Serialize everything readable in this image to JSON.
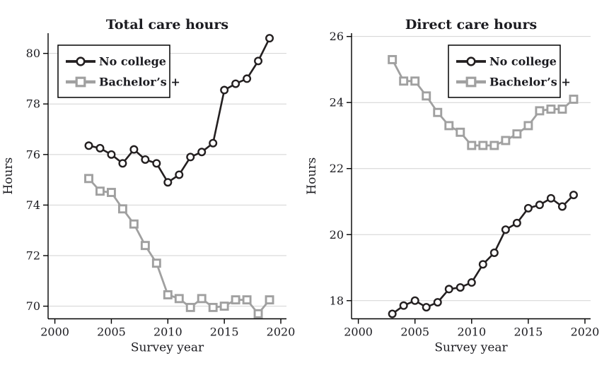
{
  "figure": {
    "background": "#ffffff",
    "colors": {
      "no_college": "#231f20",
      "bachelors": "#a0a0a0",
      "grid": "#d2d2d2",
      "axis": "#000000",
      "text": "#1b1b20",
      "legend_border": "#000000",
      "legend_fill": "#ffffff",
      "marker_fill": "#ffffff"
    }
  },
  "chart_data": [
    {
      "type": "line",
      "title": "Total care hours",
      "xlabel": "Survey year",
      "ylabel": "Hours",
      "x": [
        2003,
        2004,
        2005,
        2006,
        2007,
        2008,
        2009,
        2010,
        2011,
        2012,
        2013,
        2014,
        2015,
        2016,
        2017,
        2018,
        2019
      ],
      "series": [
        {
          "name": "No college",
          "marker": "circle",
          "color_key": "no_college",
          "values": [
            76.35,
            76.25,
            76.0,
            75.65,
            76.2,
            75.8,
            75.65,
            74.9,
            75.2,
            75.9,
            76.1,
            76.45,
            78.55,
            78.8,
            79.0,
            79.7,
            80.6
          ]
        },
        {
          "name": "Bachelor’s +",
          "marker": "square",
          "color_key": "bachelors",
          "values": [
            75.05,
            74.55,
            74.5,
            73.85,
            73.25,
            72.4,
            71.7,
            70.45,
            70.3,
            69.95,
            70.3,
            69.95,
            70.0,
            70.25,
            70.25,
            69.7,
            70.25
          ]
        }
      ],
      "xlim": [
        1999.4,
        2020.5
      ],
      "ylim": [
        69.5,
        80.8
      ],
      "xticks": [
        2000,
        2005,
        2010,
        2015,
        2020
      ],
      "yticks": [
        70,
        72,
        74,
        76,
        78,
        80
      ],
      "grid": true,
      "legend": {
        "position": "upper-left",
        "entries": [
          {
            "label": "No college",
            "marker": "circle",
            "color_key": "no_college"
          },
          {
            "label": "Bachelor’s +",
            "marker": "square",
            "color_key": "bachelors"
          }
        ]
      }
    },
    {
      "type": "line",
      "title": "Direct care hours",
      "xlabel": "Survey year",
      "ylabel": "Hours",
      "x": [
        2003,
        2004,
        2005,
        2006,
        2007,
        2008,
        2009,
        2010,
        2011,
        2012,
        2013,
        2014,
        2015,
        2016,
        2017,
        2018,
        2019
      ],
      "series": [
        {
          "name": "No college",
          "marker": "circle",
          "color_key": "no_college",
          "values": [
            17.6,
            17.85,
            18.0,
            17.8,
            17.95,
            18.35,
            18.4,
            18.55,
            19.1,
            19.45,
            20.15,
            20.35,
            20.8,
            20.9,
            21.1,
            20.85,
            21.2
          ]
        },
        {
          "name": "Bachelor’s +",
          "marker": "square",
          "color_key": "bachelors",
          "values": [
            25.3,
            24.65,
            24.65,
            24.2,
            23.7,
            23.3,
            23.1,
            22.7,
            22.7,
            22.7,
            22.85,
            23.05,
            23.3,
            23.75,
            23.8,
            23.8,
            24.1
          ]
        }
      ],
      "xlim": [
        1999.4,
        2020.5
      ],
      "ylim": [
        17.45,
        26.1
      ],
      "xticks": [
        2000,
        2005,
        2010,
        2015,
        2020
      ],
      "yticks": [
        18,
        20,
        22,
        24,
        26
      ],
      "grid": true,
      "legend": {
        "position": "upper-right",
        "entries": [
          {
            "label": "No college",
            "marker": "circle",
            "color_key": "no_college"
          },
          {
            "label": "Bachelor’s +",
            "marker": "square",
            "color_key": "bachelors"
          }
        ]
      }
    }
  ]
}
